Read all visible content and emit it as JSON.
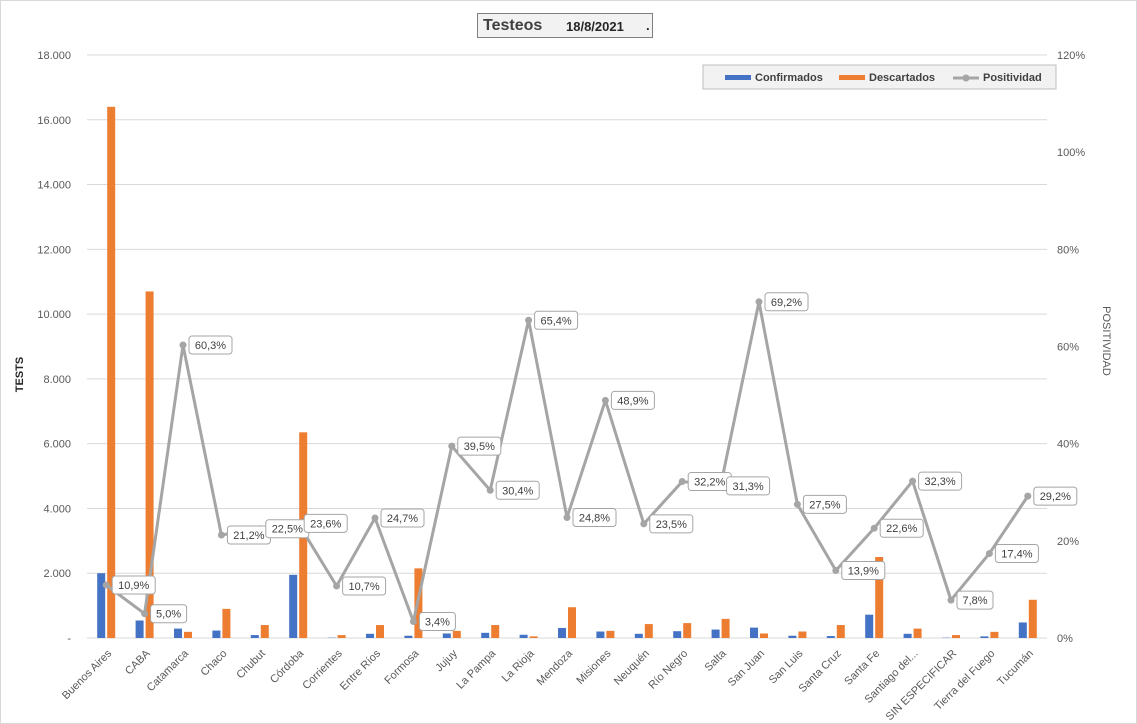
{
  "title": {
    "main": "Testeos",
    "date": "18/8/2021",
    "dot": "."
  },
  "chart_data": {
    "type": "bar",
    "categories": [
      "Buenos Aires",
      "CABA",
      "Catamarca",
      "Chaco",
      "Chubut",
      "Córdoba",
      "Corrientes",
      "Entre Ríos",
      "Formosa",
      "Jujuy",
      "La Pampa",
      "La Rioja",
      "Mendoza",
      "Misiones",
      "Neuquén",
      "Río Negro",
      "Salta",
      "San Juan",
      "San Luis",
      "Santa Cruz",
      "Santa Fe",
      "Santiago del...",
      "SIN ESPECIFICAR",
      "Tierra del Fuego",
      "Tucumán"
    ],
    "series": [
      {
        "name": "Confirmados",
        "kind": "bar",
        "axis": "left",
        "color": "#4472c4",
        "values": [
          2000,
          540,
          290,
          230,
          90,
          1950,
          10,
          130,
          70,
          140,
          160,
          100,
          310,
          200,
          130,
          210,
          260,
          320,
          70,
          60,
          720,
          130,
          10,
          50,
          480
        ]
      },
      {
        "name": "Descartados",
        "kind": "bar",
        "axis": "left",
        "color": "#ed7d31",
        "values": [
          16400,
          10700,
          190,
          900,
          400,
          6350,
          90,
          400,
          2150,
          220,
          400,
          50,
          950,
          220,
          430,
          460,
          590,
          140,
          200,
          400,
          2500,
          290,
          90,
          190,
          1180
        ]
      },
      {
        "name": "Positividad",
        "kind": "line",
        "axis": "right",
        "color": "#a5a5a5",
        "values": [
          10.9,
          5.0,
          60.3,
          21.2,
          22.5,
          23.6,
          10.7,
          24.7,
          3.4,
          39.5,
          30.4,
          65.4,
          24.8,
          48.9,
          23.5,
          32.2,
          31.3,
          69.2,
          27.5,
          13.9,
          22.6,
          32.3,
          7.8,
          17.4,
          29.2
        ],
        "labels": [
          "10,9%",
          "5,0%",
          "60,3%",
          "21,2%",
          "22,5%",
          "23,6%",
          "10,7%",
          "24,7%",
          "3,4%",
          "39,5%",
          "30,4%",
          "65,4%",
          "24,8%",
          "48,9%",
          "23,5%",
          "32,2%",
          "31,3%",
          "69,2%",
          "27,5%",
          "13,9%",
          "22,6%",
          "32,3%",
          "7,8%",
          "17,4%",
          "29,2%"
        ]
      }
    ],
    "y_left": {
      "label": "TESTS",
      "min": 0,
      "max": 18000,
      "ticks": [
        0,
        2000,
        4000,
        6000,
        8000,
        10000,
        12000,
        14000,
        16000,
        18000
      ],
      "tick_labels": [
        "-",
        "2.000",
        "4.000",
        "6.000",
        "8.000",
        "10.000",
        "12.000",
        "14.000",
        "16.000",
        "18.000"
      ]
    },
    "y_right": {
      "label": "POSITIVIDAD",
      "min": 0,
      "max": 120,
      "ticks": [
        0,
        20,
        40,
        60,
        80,
        100,
        120
      ],
      "tick_labels": [
        "0%",
        "20%",
        "40%",
        "60%",
        "80%",
        "100%",
        "120%"
      ]
    },
    "grid": true,
    "legend": {
      "position": "top-right",
      "labels": [
        "Confirmados",
        "Descartados",
        "Positividad"
      ]
    }
  }
}
